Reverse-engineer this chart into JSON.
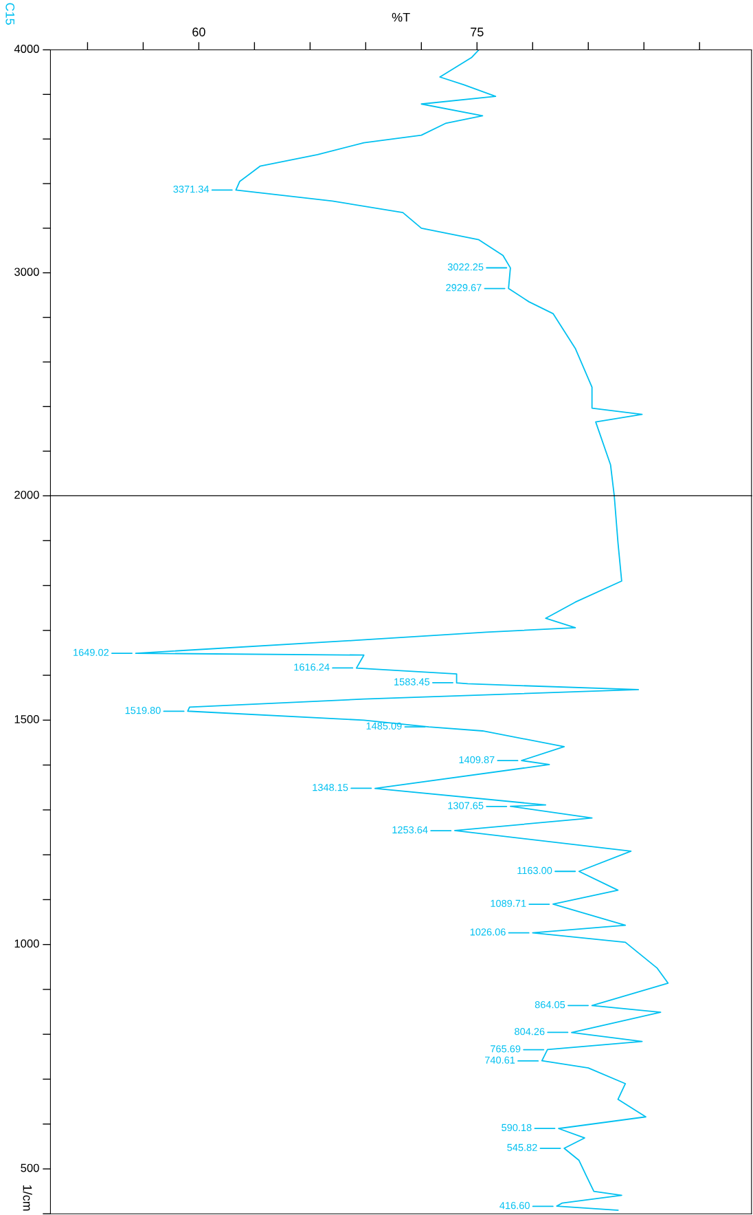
{
  "chart_data": [
    {
      "type": "line",
      "xlabel": "%T",
      "legend": "top left",
      "grid": false,
      "x": [
        75.1,
        74.7,
        73.0,
        74.3,
        76.0,
        72.0,
        75.3,
        73.3,
        72.0,
        68.9,
        66.4,
        63.3,
        62.2,
        62.0,
        67.2,
        71.0,
        72.0,
        75.1,
        76.4,
        76.8,
        76.7,
        77.8,
        79.1,
        80.3,
        81.2,
        81.2,
        83.9,
        81.4,
        82.2,
        82.4
      ],
      "series": [
        {
          "name": "C15",
          "color": "#00c0f0",
          "values": [
            4000,
            3965,
            3878,
            3843,
            3791,
            3757,
            3704,
            3670,
            3617,
            3583,
            3530,
            3478,
            3409,
            3371,
            3322,
            3270,
            3200,
            3148,
            3078,
            3022,
            2930,
            2870,
            2817,
            2661,
            2487,
            2393,
            2365,
            2331,
            2139,
            2000
          ]
        }
      ],
      "ylim": [
        2000,
        4000
      ],
      "yticks": [
        4000,
        {
          "value": 3800,
          "label": null
        },
        {
          "value": 3600,
          "label": null
        },
        {
          "value": 3400,
          "label": null
        },
        {
          "value": 3200,
          "label": null
        },
        3000,
        {
          "value": 2800,
          "label": null
        },
        {
          "value": 2600,
          "label": null
        },
        {
          "value": 2400,
          "label": null
        },
        {
          "value": 2200,
          "label": null
        },
        2000
      ],
      "xlim": [
        52,
        89.8
      ],
      "xticks": [
        {
          "value": 54,
          "label": null
        },
        {
          "value": 57,
          "label": null
        },
        60,
        {
          "value": 63,
          "label": null
        },
        {
          "value": 66,
          "label": null
        },
        {
          "value": 69,
          "label": null
        },
        {
          "value": 72,
          "label": null
        },
        75,
        {
          "value": 78,
          "label": null
        },
        {
          "value": 81,
          "label": null
        },
        {
          "value": 84,
          "label": null
        },
        {
          "value": 87,
          "label": null
        }
      ],
      "annotations": [
        {
          "text": "3371.34",
          "x": 62.0,
          "y": 3371.34
        },
        {
          "text": "3022.25",
          "x": 76.8,
          "y": 3022.25
        },
        {
          "text": "2929.67",
          "x": 76.7,
          "y": 2929.67
        }
      ]
    },
    {
      "type": "line",
      "ylabel": "1/cm",
      "tick_labels": "y",
      "grid": false,
      "x": [
        82.4,
        82.6,
        82.8,
        80.3,
        78.7,
        80.3,
        75.5,
        68.5,
        56.6,
        68.9,
        68.5,
        73.9,
        73.9,
        74.5,
        83.7,
        68.9,
        59.5,
        59.4,
        68.9,
        72.4,
        75.3,
        79.7,
        77.4,
        78.9,
        69.5,
        78.7,
        76.8,
        81.2,
        73.8,
        83.3,
        80.5,
        82.6,
        79.1,
        83.0,
        78.0,
        83.0,
        84.7,
        85.3,
        81.2,
        84.9,
        80.1,
        83.9,
        78.8,
        78.5,
        81.0,
        83.0,
        82.6,
        84.1,
        79.4,
        80.8,
        79.7,
        80.5,
        80.9,
        81.3,
        82.8,
        79.6,
        79.3,
        82.6
      ],
      "series": [
        {
          "color": "#00c0f0",
          "values": [
            2000,
            1896,
            1810,
            1763,
            1727,
            1706,
            1696,
            1678,
            1649,
            1645,
            1616,
            1603,
            1583,
            1581,
            1568,
            1547,
            1529,
            1520,
            1500,
            1485,
            1476,
            1441,
            1410,
            1401,
            1348,
            1311,
            1308,
            1282,
            1254,
            1208,
            1163,
            1121,
            1090,
            1043,
            1026,
            1005,
            948,
            914,
            864,
            849,
            804,
            784,
            766,
            741,
            725,
            690,
            655,
            616,
            590,
            569,
            546,
            519,
            484,
            450,
            441,
            424,
            417,
            408
          ]
        }
      ],
      "ylim": [
        400,
        2000
      ],
      "yticks": [
        {
          "value": 1900,
          "label": null
        },
        {
          "value": 1800,
          "label": null
        },
        {
          "value": 1700,
          "label": null
        },
        {
          "value": 1600,
          "label": null
        },
        1500,
        {
          "value": 1400,
          "label": null
        },
        {
          "value": 1300,
          "label": null
        },
        {
          "value": 1200,
          "label": null
        },
        {
          "value": 1100,
          "label": null
        },
        1000,
        {
          "value": 900,
          "label": null
        },
        {
          "value": 800,
          "label": null
        },
        {
          "value": 700,
          "label": null
        },
        {
          "value": 600,
          "label": null
        },
        500,
        {
          "value": 400,
          "label": null
        }
      ],
      "xlim": [
        52,
        89.8
      ],
      "xticks": [
        60,
        75
      ],
      "annotations": [
        {
          "text": "1649.02",
          "x": 56.6,
          "y": 1649.02
        },
        {
          "text": "1616.24",
          "x": 68.5,
          "y": 1616.24
        },
        {
          "text": "1583.45",
          "x": 73.9,
          "y": 1583.45
        },
        {
          "text": "1519.80",
          "x": 59.4,
          "y": 1519.8
        },
        {
          "text": "1485.09",
          "x": 72.4,
          "y": 1485.09
        },
        {
          "text": "1409.87",
          "x": 77.4,
          "y": 1409.87
        },
        {
          "text": "1348.15",
          "x": 69.5,
          "y": 1348.15
        },
        {
          "text": "1307.65",
          "x": 76.8,
          "y": 1307.65
        },
        {
          "text": "1253.64",
          "x": 73.8,
          "y": 1253.64
        },
        {
          "text": "1163.00",
          "x": 80.5,
          "y": 1163.0
        },
        {
          "text": "1089.71",
          "x": 79.1,
          "y": 1089.71
        },
        {
          "text": "1026.06",
          "x": 78.0,
          "y": 1026.06
        },
        {
          "text": "864.05",
          "x": 81.2,
          "y": 864.05
        },
        {
          "text": "804.26",
          "x": 80.1,
          "y": 804.26
        },
        {
          "text": "765.69",
          "x": 78.8,
          "y": 765.69
        },
        {
          "text": "740.61",
          "x": 78.5,
          "y": 740.61
        },
        {
          "text": "590.18",
          "x": 79.4,
          "y": 590.18
        },
        {
          "text": "545.82",
          "x": 79.7,
          "y": 545.82
        },
        {
          "text": "416.60",
          "x": 79.3,
          "y": 416.6
        }
      ]
    }
  ]
}
